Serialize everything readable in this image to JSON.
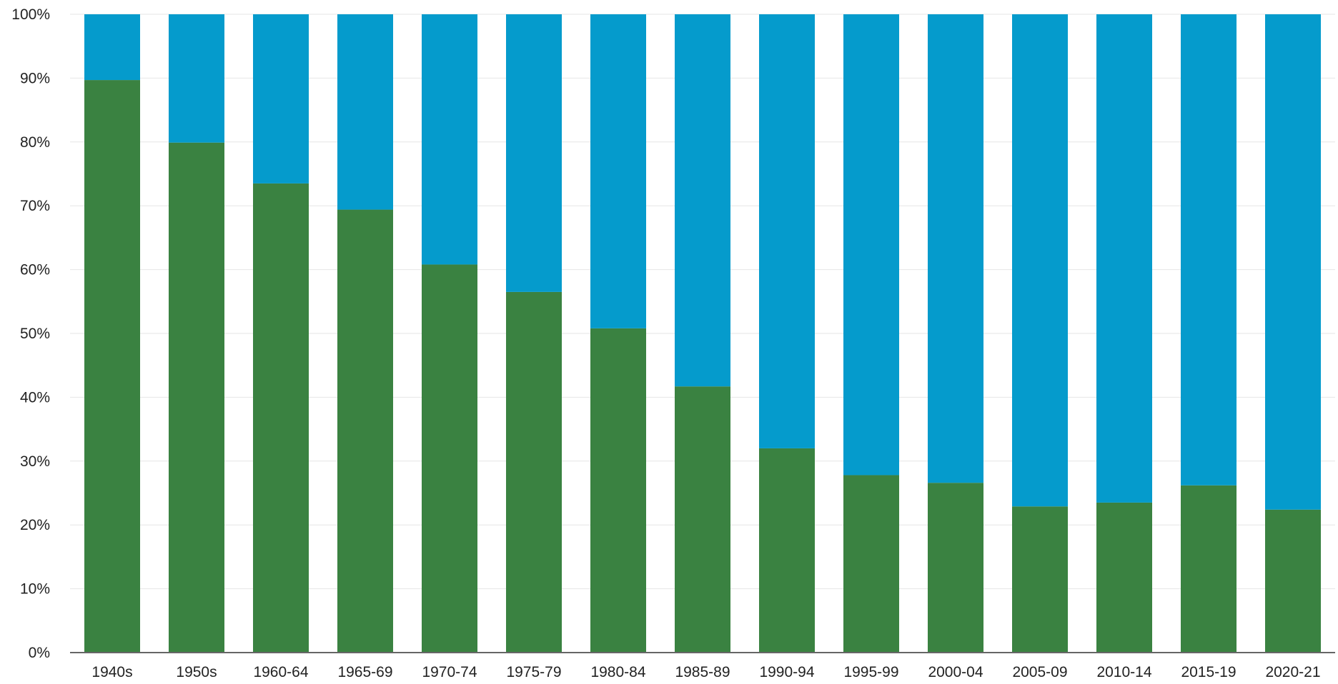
{
  "chart_data": {
    "type": "bar",
    "stacked": true,
    "normalized_percent": true,
    "title": "",
    "xlabel": "",
    "ylabel": "",
    "ylim": [
      0,
      100
    ],
    "y_ticks": [
      "0%",
      "10%",
      "20%",
      "30%",
      "40%",
      "50%",
      "60%",
      "70%",
      "80%",
      "90%",
      "100%"
    ],
    "grid": true,
    "legend": "none",
    "categories": [
      "1940s",
      "1950s",
      "1960-64",
      "1965-69",
      "1970-74",
      "1975-79",
      "1980-84",
      "1985-89",
      "1990-94",
      "1995-99",
      "2000-04",
      "2005-09",
      "2010-14",
      "2015-19",
      "2020-21"
    ],
    "series": [
      {
        "color": "#3a8241",
        "values": [
          89.7,
          79.9,
          73.5,
          69.4,
          60.8,
          56.5,
          50.8,
          41.7,
          32.0,
          27.8,
          26.6,
          22.9,
          23.5,
          26.2,
          22.4
        ]
      },
      {
        "color": "#059bcc",
        "values": [
          10.3,
          20.1,
          26.5,
          30.6,
          39.2,
          43.5,
          49.2,
          58.3,
          68.0,
          72.2,
          73.4,
          77.1,
          76.5,
          73.8,
          77.6
        ]
      }
    ]
  }
}
